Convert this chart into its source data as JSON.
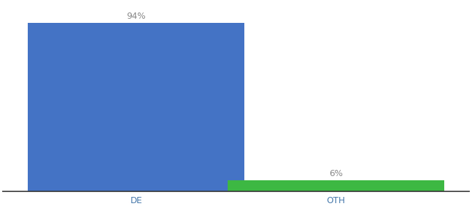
{
  "categories": [
    "DE",
    "OTH"
  ],
  "values": [
    94,
    6
  ],
  "bar_colors": [
    "#4472c4",
    "#3cb843"
  ],
  "value_labels": [
    "94%",
    "6%"
  ],
  "background_color": "#ffffff",
  "ylim": [
    0,
    105
  ],
  "label_fontsize": 9,
  "tick_fontsize": 9,
  "bar_width": 0.65,
  "spine_color": "#333333",
  "x_positions": [
    0.3,
    0.9
  ],
  "xlim": [
    -0.1,
    1.3
  ]
}
